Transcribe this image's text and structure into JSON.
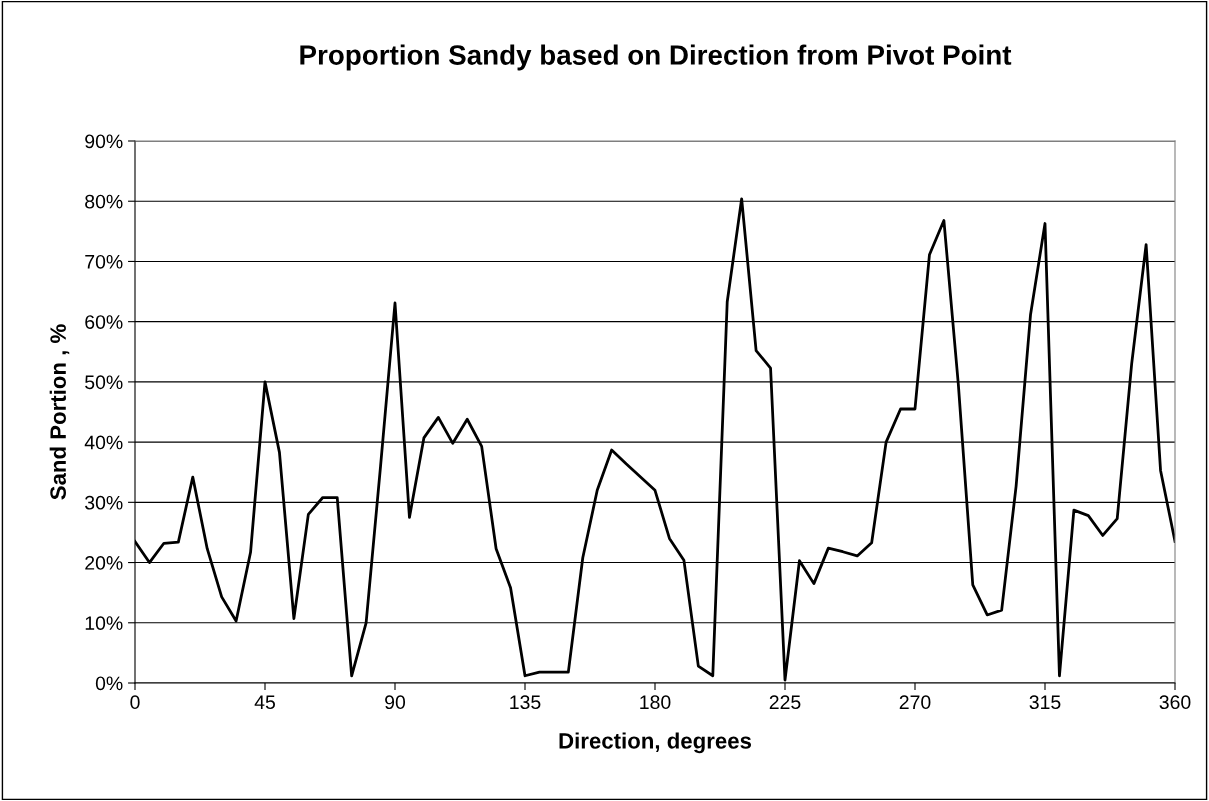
{
  "chart_data": {
    "type": "line",
    "title": "Proportion Sandy based on Direction from Pivot Point",
    "xlabel": "Direction, degrees",
    "ylabel": "Sand Portion , %",
    "x": [
      0,
      5,
      10,
      15,
      20,
      25,
      30,
      35,
      40,
      45,
      50,
      55,
      60,
      65,
      70,
      75,
      80,
      85,
      90,
      95,
      100,
      105,
      110,
      115,
      120,
      125,
      130,
      135,
      140,
      145,
      150,
      155,
      160,
      165,
      170,
      175,
      180,
      185,
      190,
      195,
      200,
      205,
      210,
      215,
      220,
      225,
      230,
      235,
      240,
      245,
      250,
      255,
      260,
      265,
      270,
      275,
      280,
      285,
      290,
      295,
      300,
      305,
      310,
      315,
      320,
      325,
      330,
      335,
      340,
      345,
      350,
      355,
      360
    ],
    "series": [
      {
        "color": "#000000",
        "values": [
          23.5,
          20,
          23.2,
          23.4,
          34.2,
          22.3,
          14.3,
          10.3,
          21.7,
          50,
          38.3,
          10.7,
          28,
          30.8,
          30.8,
          1.2,
          10,
          36,
          63.1,
          27.5,
          40.7,
          44.1,
          39.8,
          43.8,
          39.3,
          22.3,
          15.8,
          1.2,
          1.8,
          1.8,
          1.8,
          20.8,
          32,
          38.7,
          36.4,
          34.2,
          32,
          24,
          20.4,
          2.8,
          1.2,
          63.3,
          80.4,
          55.2,
          52.3,
          0.5,
          20.3,
          16.5,
          22.4,
          21.8,
          21.1,
          23.3,
          40,
          45.5,
          45.5,
          71.1,
          76.8,
          49.6,
          16.3,
          11.3,
          12.1,
          32.7,
          61.2,
          76.3,
          1.2,
          28.7,
          27.8,
          24.5,
          27.3,
          53,
          72.8,
          35.3,
          23.5
        ]
      }
    ],
    "xlim": [
      0,
      360
    ],
    "xticks": [
      0,
      45,
      90,
      135,
      180,
      225,
      270,
      315,
      360
    ],
    "ylim": [
      0,
      90
    ],
    "yticks": [
      {
        "value": 0,
        "label": "0%"
      },
      {
        "value": 10,
        "label": "10%"
      },
      {
        "value": 20,
        "label": "20%"
      },
      {
        "value": 30,
        "label": "30%"
      },
      {
        "value": 40,
        "label": "40%"
      },
      {
        "value": 50,
        "label": "50%"
      },
      {
        "value": 60,
        "label": "60%"
      },
      {
        "value": 70,
        "label": "70%"
      },
      {
        "value": 80,
        "label": "80%"
      },
      {
        "value": 90,
        "label": "90%"
      }
    ],
    "grid": "y",
    "marker": "none",
    "line_style": "solid"
  }
}
